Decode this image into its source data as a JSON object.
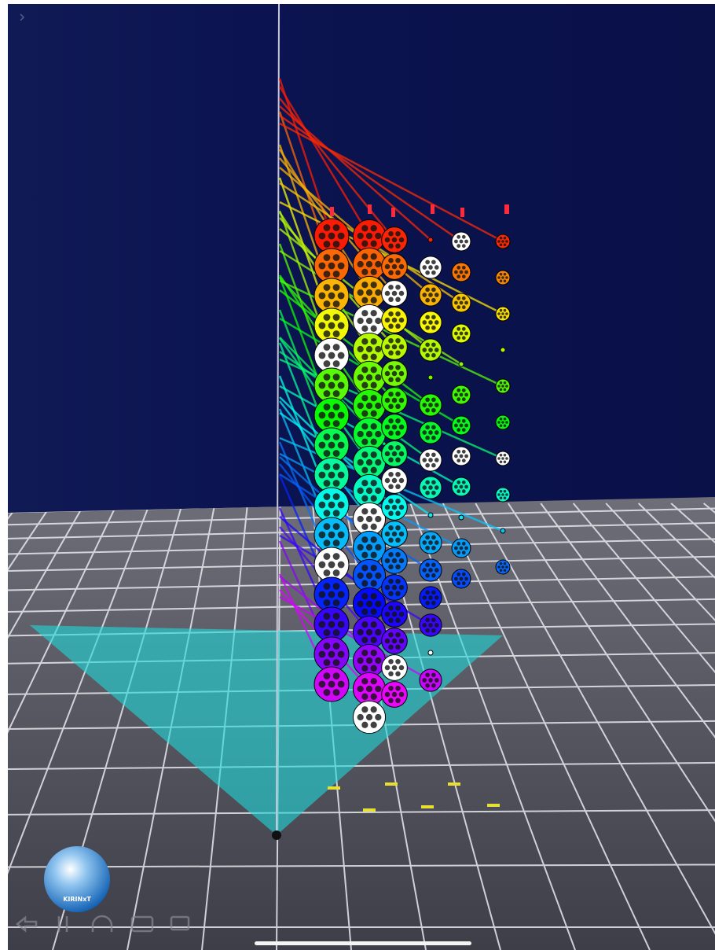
{
  "app": {
    "logo_label": "KIRINxT"
  }
}
